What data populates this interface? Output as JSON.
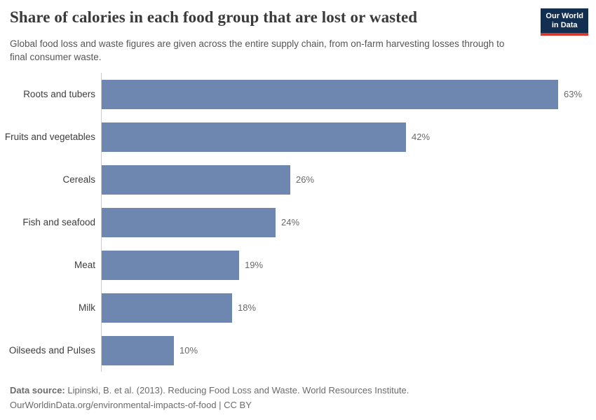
{
  "header": {
    "title": "Share of calories in each food group that are lost or wasted",
    "subtitle": "Global food loss and waste figures are given across the entire supply chain, from on-farm harvesting losses through to final consumer waste.",
    "logo": {
      "line1": "Our World",
      "line2": "in Data"
    }
  },
  "chart_data": {
    "type": "bar",
    "orientation": "horizontal",
    "title": "Share of calories in each food group that are lost or wasted",
    "categories": [
      "Roots and tubers",
      "Fruits and vegetables",
      "Cereals",
      "Fish and seafood",
      "Meat",
      "Milk",
      "Oilseeds and Pulses"
    ],
    "values": [
      63,
      42,
      26,
      24,
      19,
      18,
      10
    ],
    "value_suffix": "%",
    "xlabel": "",
    "ylabel": "",
    "xlim": [
      0,
      63
    ],
    "grid": false,
    "legend": "none",
    "bar_color": "#6d87b0"
  },
  "footer": {
    "source_label": "Data source:",
    "source_text": " Lipinski, B. et al. (2013). Reducing Food Loss and Waste. World Resources Institute.",
    "link_line": "OurWorldinData.org/environmental-impacts-of-food | CC BY"
  },
  "colors": {
    "bar": "#6d87b0",
    "logo_navy": "#122f52",
    "logo_red": "#d7382e",
    "title_text": "#3a3a3a",
    "subtitle_text": "#565656",
    "category_text": "#3d3d3d",
    "value_text": "#696969",
    "axis_line": "#cccccc",
    "footer_text": "#6b6b6b"
  }
}
